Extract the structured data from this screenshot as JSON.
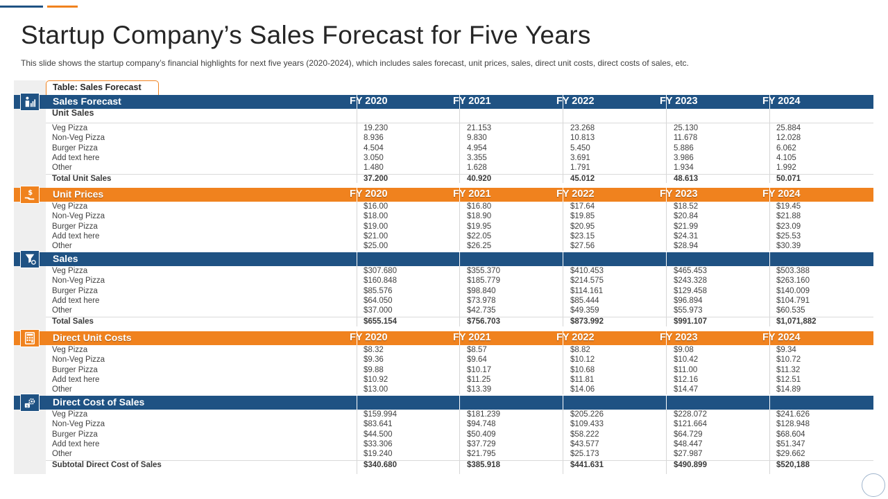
{
  "slide": {
    "title": "Startup Company’s Sales Forecast for Five Years",
    "subtitle": "This slide shows the startup company’s financial highlights for next five  years (2020-2024),  which includes sales forecast, unit prices, sales, direct unit costs, direct costs of sales, etc.",
    "table_label": "Table: Sales Forecast",
    "colors": {
      "blue": "#1f5283",
      "orange": "#f0821e"
    }
  },
  "years": [
    "FY 2020",
    "FY 2021",
    "FY 2022",
    "FY 2023",
    "FY 2024"
  ],
  "sections": [
    {
      "title": "Sales Forecast",
      "color": "blue",
      "icon": "sales-chart-icon",
      "subheading": "Unit Sales",
      "rows": [
        {
          "label": "Veg Pizza",
          "values": [
            "19.230",
            "21.153",
            "23.268",
            "25.130",
            "25.884"
          ]
        },
        {
          "label": "Non-Veg Pizza",
          "values": [
            "8.936",
            "9.830",
            "10.813",
            "11.678",
            "12.028"
          ]
        },
        {
          "label": "Burger Pizza",
          "values": [
            "4.504",
            "4.954",
            "5.450",
            "5.886",
            "6.062"
          ]
        },
        {
          "label": "Add text here",
          "values": [
            "3.050",
            "3.355",
            "3.691",
            "3.986",
            "4.105"
          ]
        },
        {
          "label": "Other",
          "values": [
            "1.480",
            "1.628",
            "1.791",
            "1.934",
            "1.992"
          ]
        }
      ],
      "total": {
        "label": "Total Unit  Sales",
        "values": [
          "37.200",
          "40.920",
          "45.012",
          "48.613",
          "50.071"
        ]
      }
    },
    {
      "title": "Unit Prices",
      "color": "orange",
      "icon": "dollar-hand-icon",
      "rows": [
        {
          "label": "Veg Pizza",
          "values": [
            "$16.00",
            "$16.80",
            "$17.64",
            "$18.52",
            "$19.45"
          ]
        },
        {
          "label": "Non-Veg Pizza",
          "values": [
            "$18.00",
            "$18.90",
            "$19.85",
            "$20.84",
            "$21.88"
          ]
        },
        {
          "label": "Burger Pizza",
          "values": [
            "$19.00",
            "$19.95",
            "$20.95",
            "$21.99",
            "$23.09"
          ]
        },
        {
          "label": "Add text here",
          "values": [
            "$21.00",
            "$22.05",
            "$23.15",
            "$24.31",
            "$25.53"
          ]
        },
        {
          "label": "Other",
          "values": [
            "$25.00",
            "$26.25",
            "$27.56",
            "$28.94",
            "$30.39"
          ]
        }
      ]
    },
    {
      "title": "Sales",
      "color": "blue",
      "icon": "dollar-funnel-icon",
      "rows": [
        {
          "label": "Veg Pizza",
          "values": [
            "$307.680",
            "$355.370",
            "$410.453",
            "$465.453",
            "$503.388"
          ]
        },
        {
          "label": "Non-Veg Pizza",
          "values": [
            "$160.848",
            "$185.779",
            "$214.575",
            "$243.328",
            "$263.160"
          ]
        },
        {
          "label": "Burger Pizza",
          "values": [
            "$85.576",
            "$98.840",
            "$114.161",
            "$129.458",
            "$140.009"
          ]
        },
        {
          "label": "Add text here",
          "values": [
            "$64.050",
            "$73.978",
            "$85.444",
            "$96.894",
            "$104.791"
          ]
        },
        {
          "label": "Other",
          "values": [
            "$37.000",
            "$42.735",
            "$49.359",
            "$55.973",
            "$60.535"
          ]
        }
      ],
      "total": {
        "label": "Total Sales",
        "values": [
          "$655.154",
          "$756.703",
          "$873.992",
          "$991.107",
          "$1,071,882"
        ]
      }
    },
    {
      "title": "Direct Unit Costs",
      "color": "orange",
      "icon": "calculator-icon",
      "rows": [
        {
          "label": "Veg Pizza",
          "values": [
            "$8.32",
            "$8.57",
            "$8.82",
            "$9.08",
            "$9.34"
          ]
        },
        {
          "label": "Non-Veg Pizza",
          "values": [
            "$9.36",
            "$9.64",
            "$10.12",
            "$10.42",
            "$10.72"
          ]
        },
        {
          "label": "Burger Pizza",
          "values": [
            "$9.88",
            "$10.17",
            "$10.68",
            "$11.00",
            "$11.32"
          ]
        },
        {
          "label": "Add text here",
          "values": [
            "$10.92",
            "$11.25",
            "$11.81",
            "$12.16",
            "$12.51"
          ]
        },
        {
          "label": "Other",
          "values": [
            "$13.00",
            "$13.39",
            "$14.06",
            "$14.47",
            "$14.89"
          ]
        }
      ]
    },
    {
      "title": "Direct Cost of Sales",
      "color": "blue",
      "icon": "cost-gear-icon",
      "rows": [
        {
          "label": "Veg Pizza",
          "values": [
            "$159.994",
            "$181.239",
            "$205.226",
            "$228.072",
            "$241.626"
          ]
        },
        {
          "label": "Non-Veg Pizza",
          "values": [
            "$83.641",
            "$94.748",
            "$109.433",
            "$121.664",
            "$128.948"
          ]
        },
        {
          "label": "Burger Pizza",
          "values": [
            "$44.500",
            "$50.409",
            "$58.222",
            "$64.729",
            "$68.604"
          ]
        },
        {
          "label": "Add text here",
          "values": [
            "$33.306",
            "$37.729",
            "$43.577",
            "$48.447",
            "$51.347"
          ]
        },
        {
          "label": "Other",
          "values": [
            "$19.240",
            "$21.795",
            "$25.173",
            "$27.987",
            "$29.662"
          ]
        }
      ],
      "total": {
        "label": "Subtotal Direct Cost of Sales",
        "values": [
          "$340.680",
          "$385.918",
          "$441.631",
          "$490.899",
          "$520,188"
        ]
      }
    }
  ]
}
